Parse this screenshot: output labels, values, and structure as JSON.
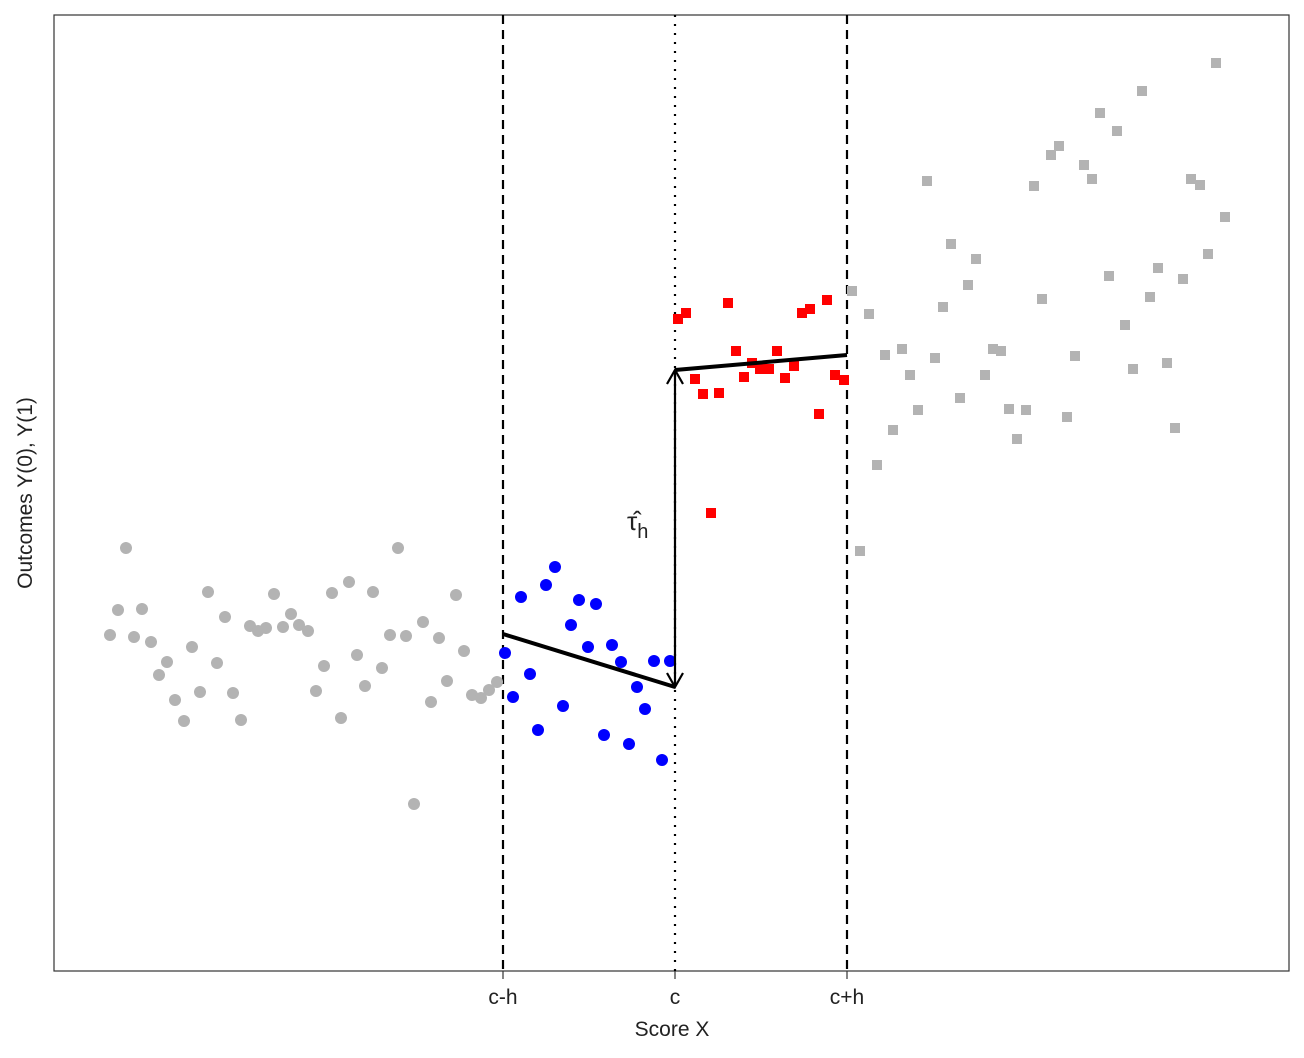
{
  "chart_data": {
    "type": "scatter",
    "x_label": "Score X",
    "y_label": "Outcomes Y(0), Y(1)",
    "annotation": {
      "text": "τ̂",
      "sub": "h"
    },
    "xlim": [
      -621,
      614
    ],
    "ylim": [
      0,
      956
    ],
    "xticks": [
      {
        "value": -172,
        "label": "c-h"
      },
      {
        "value": 0,
        "label": "c"
      },
      {
        "value": 172,
        "label": "c+h"
      }
    ],
    "vline_styles": [
      "dashed",
      "dotted",
      "dashed"
    ],
    "series": [
      {
        "marker": "circle",
        "color": "#b3b3b3",
        "x": [
          -565,
          -557,
          -549,
          -541,
          -533,
          -524,
          -516,
          -508,
          -500,
          -491,
          -483,
          -475,
          -467,
          -458,
          -450,
          -442,
          -434,
          -425,
          -417,
          -409,
          -401,
          -392,
          -384,
          -376,
          -367,
          -359,
          -351,
          -343,
          -334,
          -326,
          -318,
          -310,
          -302,
          -293,
          -285,
          -277,
          -269,
          -261,
          -252,
          -244,
          -236,
          -228,
          -219,
          -211,
          -203,
          -194,
          -186,
          -178
        ],
        "values": [
          336,
          361,
          423,
          334,
          362,
          329,
          296,
          309,
          271,
          250,
          324,
          279,
          379,
          308,
          354,
          278,
          251,
          345,
          340,
          343,
          377,
          344,
          357,
          346,
          340,
          280,
          305,
          378,
          253,
          389,
          316,
          285,
          379,
          303,
          336,
          423,
          335,
          167,
          349,
          269,
          333,
          290,
          376,
          320,
          276,
          273,
          281,
          289
        ]
      },
      {
        "marker": "circle",
        "color": "#0000ff",
        "x": [
          -170,
          -162,
          -154,
          -145,
          -137,
          -129,
          -120,
          -112,
          -104,
          -96,
          -87,
          -79,
          -71,
          -63,
          -54,
          -46,
          -38,
          -30,
          -21,
          -13,
          -5
        ],
        "values": [
          318,
          274,
          374,
          297,
          241,
          386,
          404,
          265,
          346,
          371,
          324,
          367,
          236,
          326,
          309,
          227,
          284,
          262,
          310,
          211,
          310
        ]
      },
      {
        "marker": "square",
        "color": "#ff0000",
        "x": [
          3,
          11,
          20,
          28,
          36,
          44,
          53,
          61,
          69,
          77,
          85,
          94,
          102,
          110,
          119,
          127,
          135,
          144,
          152,
          160,
          169
        ],
        "values": [
          652,
          658,
          592,
          577,
          458,
          578,
          668,
          620,
          594,
          608,
          602,
          602,
          620,
          593,
          605,
          658,
          662,
          557,
          671,
          596,
          591
        ]
      },
      {
        "marker": "square",
        "color": "#b3b3b3",
        "x": [
          177,
          185,
          194,
          202,
          210,
          218,
          227,
          235,
          243,
          252,
          260,
          268,
          276,
          285,
          293,
          301,
          310,
          318,
          326,
          334,
          342,
          351,
          359,
          367,
          376,
          384,
          392,
          400,
          409,
          417,
          425,
          434,
          442,
          450,
          458,
          467,
          475,
          483,
          492,
          500,
          508,
          516,
          525,
          533,
          541,
          550
        ],
        "values": [
          680,
          420,
          657,
          506,
          616,
          541,
          622,
          596,
          561,
          790,
          613,
          664,
          727,
          573,
          686,
          712,
          596,
          622,
          620,
          562,
          532,
          561,
          785,
          672,
          816,
          825,
          554,
          615,
          806,
          792,
          858,
          695,
          840,
          646,
          602,
          880,
          674,
          703,
          608,
          543,
          692,
          792,
          786,
          717,
          908,
          754
        ]
      }
    ],
    "fits": [
      {
        "color": "#000000",
        "x": [
          -172,
          0
        ],
        "values": [
          337,
          284
        ]
      },
      {
        "color": "#000000",
        "x": [
          0,
          172
        ],
        "values": [
          601,
          616
        ]
      }
    ]
  }
}
